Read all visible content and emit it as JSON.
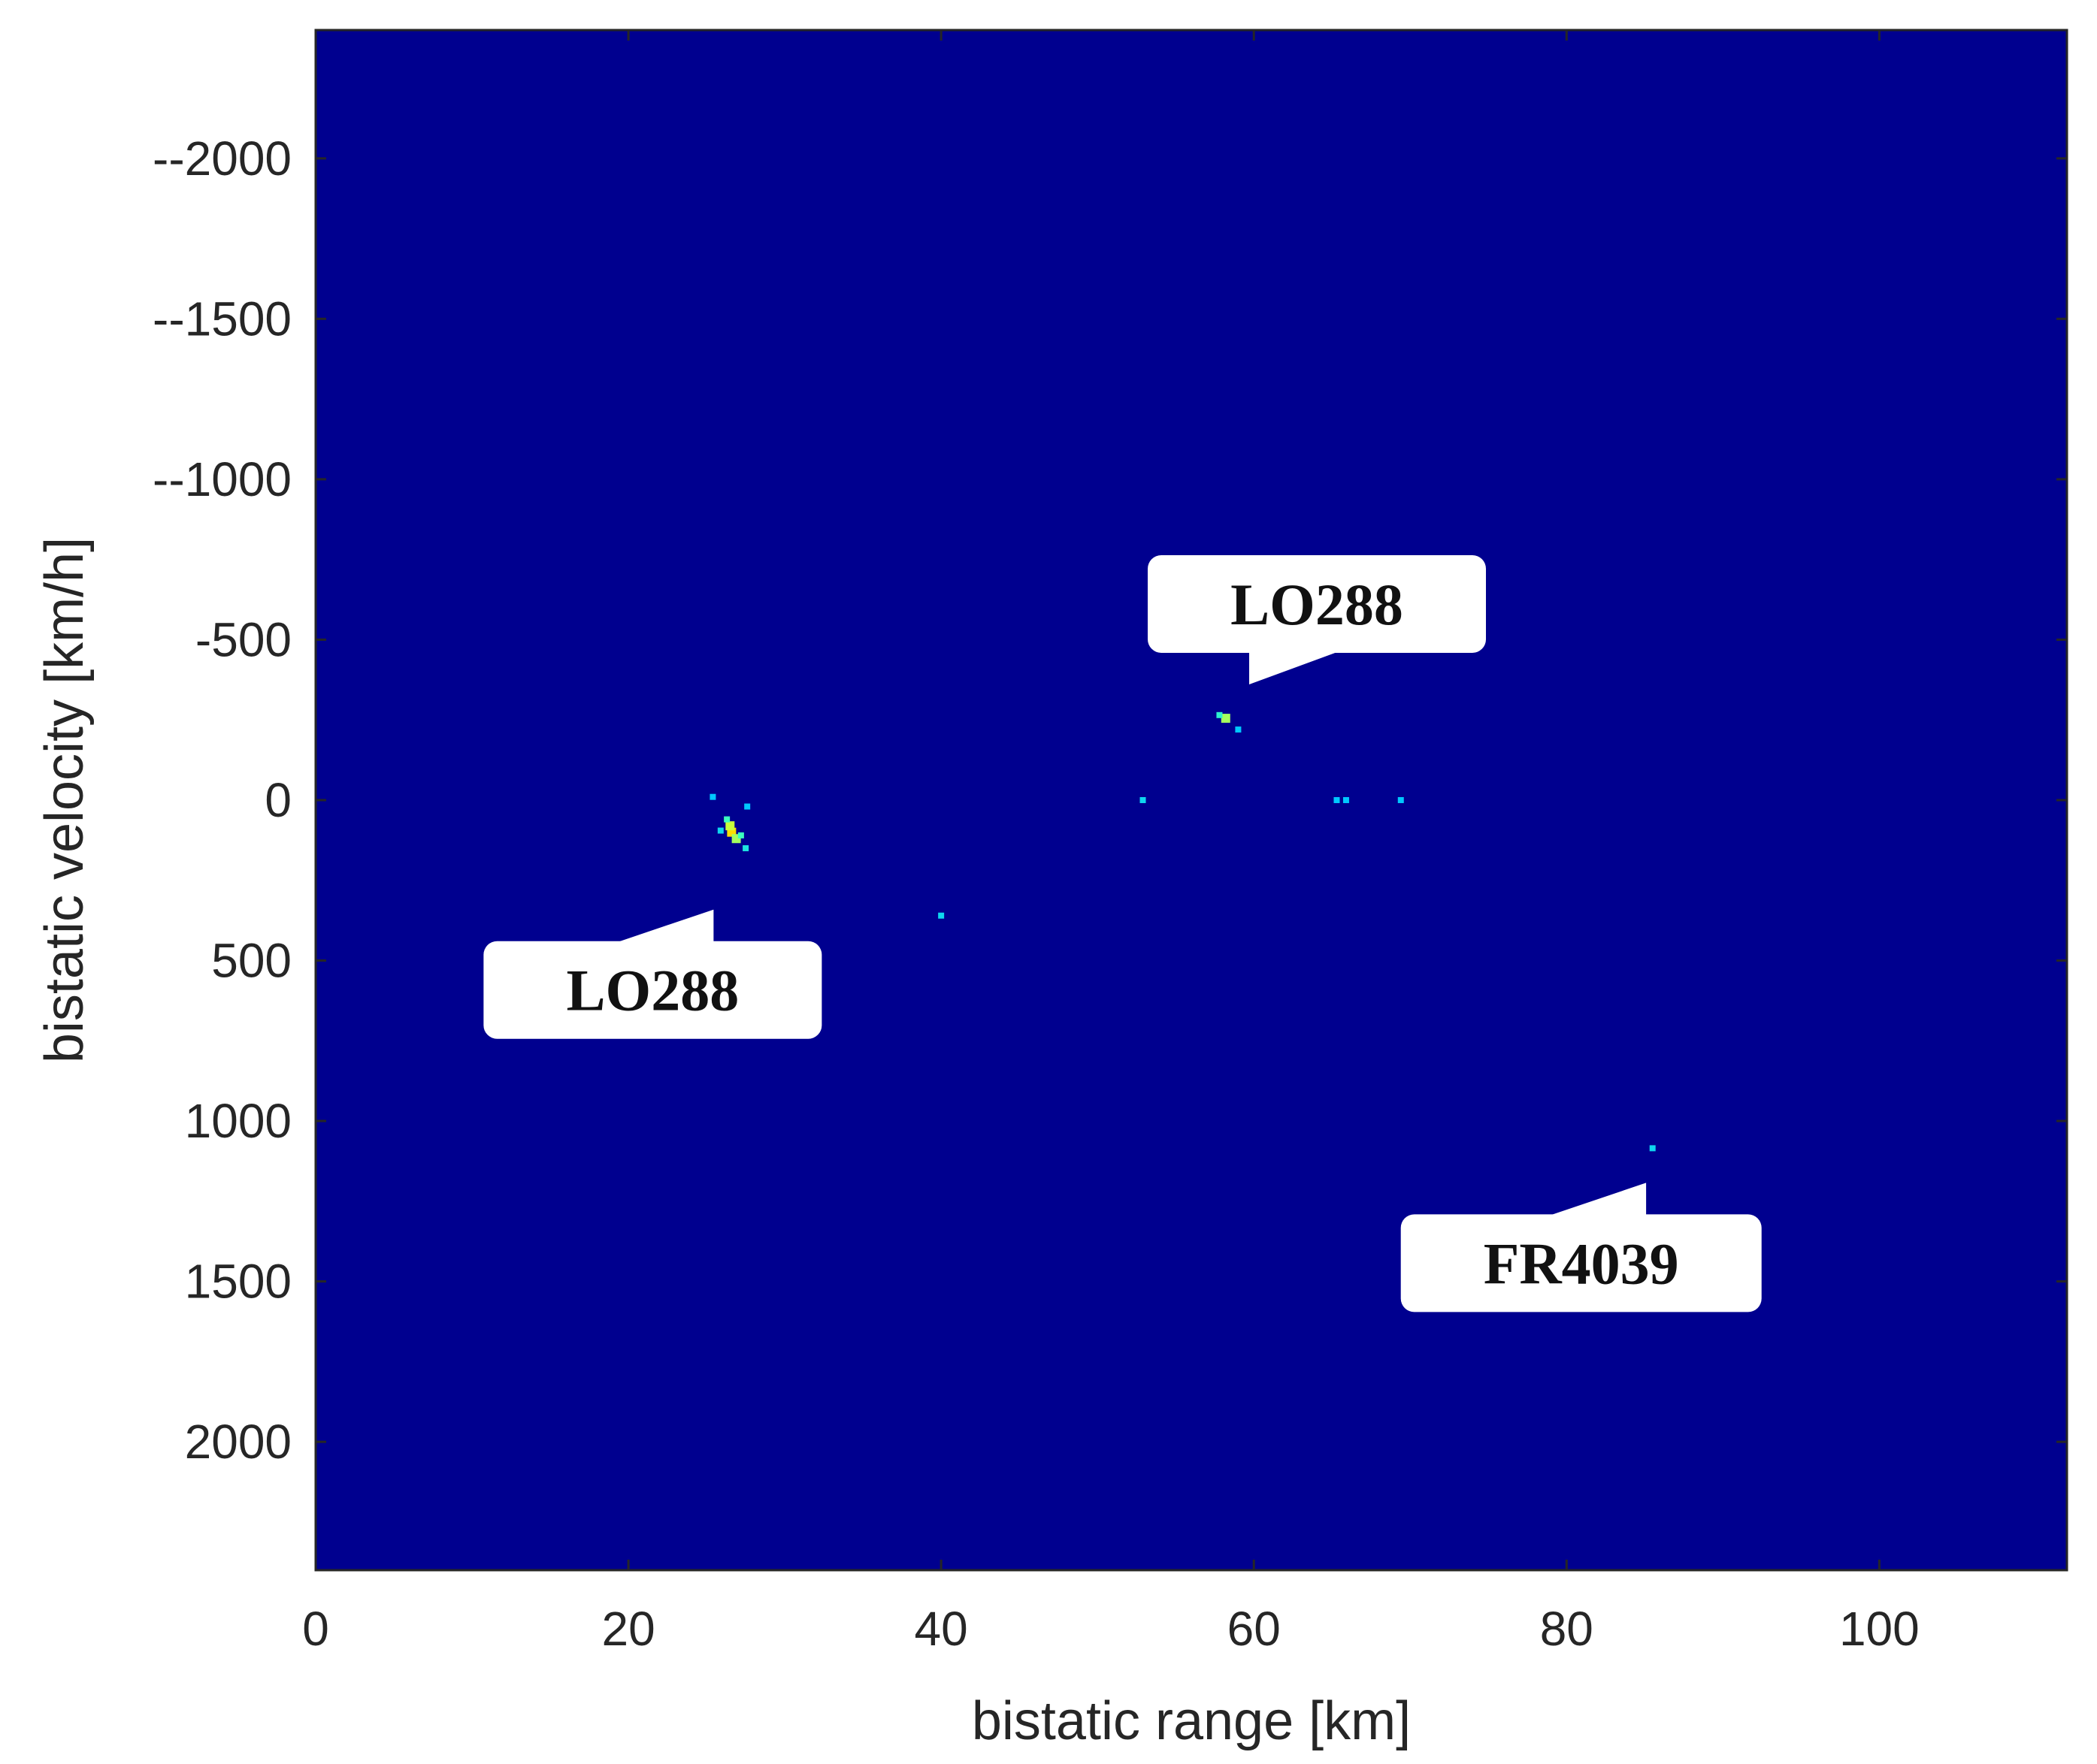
{
  "chart_data": {
    "type": "heatmap",
    "title": "",
    "xlabel": "bistatic range [km]",
    "ylabel": "bistatic velocity [km/h]",
    "xlim": [
      0,
      112
    ],
    "ylim": [
      -2400,
      2400
    ],
    "y_reversed": true,
    "x_ticks": [
      0,
      20,
      40,
      60,
      80,
      100
    ],
    "x_tick_labels": [
      "0",
      "20",
      "40",
      "60",
      "80",
      "100"
    ],
    "y_ticks": [
      -2000,
      -1500,
      -1000,
      -500,
      0,
      500,
      1000,
      1500,
      2000
    ],
    "y_tick_labels": [
      "--2000",
      "--1500",
      "--1000",
      "-500",
      "0",
      "500",
      "1000",
      "1500",
      "2000"
    ],
    "grid": false,
    "background_color": "#00008f",
    "points": [
      {
        "x": 26.6,
        "y": 100,
        "intensity": 1.0
      },
      {
        "x": 26.5,
        "y": 80,
        "intensity": 0.75
      },
      {
        "x": 26.9,
        "y": 120,
        "intensity": 0.7
      },
      {
        "x": 27.2,
        "y": 110,
        "intensity": 0.55
      },
      {
        "x": 26.3,
        "y": 60,
        "intensity": 0.55
      },
      {
        "x": 27.5,
        "y": 150,
        "intensity": 0.45
      },
      {
        "x": 25.9,
        "y": 95,
        "intensity": 0.4
      },
      {
        "x": 27.6,
        "y": 20,
        "intensity": 0.35
      },
      {
        "x": 25.4,
        "y": -10,
        "intensity": 0.35
      },
      {
        "x": 58.2,
        "y": -255,
        "intensity": 0.7
      },
      {
        "x": 57.8,
        "y": -265,
        "intensity": 0.5
      },
      {
        "x": 59.0,
        "y": -220,
        "intensity": 0.35
      },
      {
        "x": 52.9,
        "y": 0,
        "intensity": 0.4
      },
      {
        "x": 65.3,
        "y": 0,
        "intensity": 0.35
      },
      {
        "x": 65.9,
        "y": 0,
        "intensity": 0.35
      },
      {
        "x": 69.4,
        "y": 0,
        "intensity": 0.35
      },
      {
        "x": 40.0,
        "y": 360,
        "intensity": 0.4
      },
      {
        "x": 85.5,
        "y": 1085,
        "intensity": 0.4
      }
    ],
    "annotations": [
      {
        "text": "LO288",
        "target_x": 58.5,
        "target_y": -260
      },
      {
        "text": "LO288",
        "target_x": 26.6,
        "target_y": 100
      },
      {
        "text": "FR4039",
        "target_x": 85.5,
        "target_y": 1085
      }
    ]
  }
}
